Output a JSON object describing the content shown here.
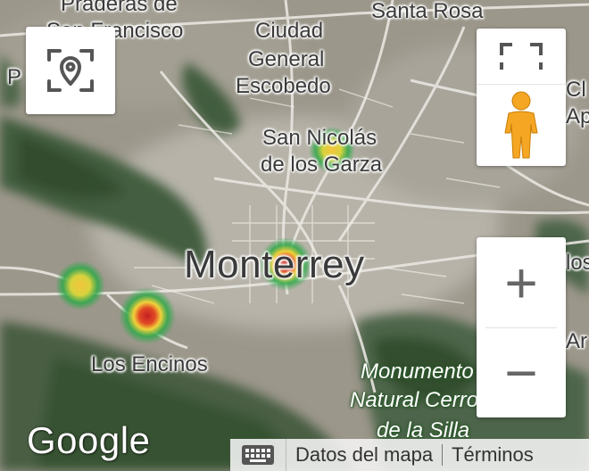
{
  "map": {
    "places": [
      {
        "name": "Praderas de",
        "type": "small"
      },
      {
        "name": "San Francisco",
        "type": "small"
      },
      {
        "name": "Santa Rosa",
        "type": "small"
      },
      {
        "name": "Ciudad",
        "type": "small"
      },
      {
        "name": "General",
        "type": "small"
      },
      {
        "name": "Escobedo",
        "type": "small"
      },
      {
        "name": "San Nicolás",
        "type": "small"
      },
      {
        "name": "de los Garza",
        "type": "small"
      },
      {
        "name": "Monterrey",
        "type": "big"
      },
      {
        "name": "Los Encinos",
        "type": "small"
      },
      {
        "name": "Monumento",
        "type": "park"
      },
      {
        "name": "Natural Cerro",
        "type": "park"
      },
      {
        "name": "de la Silla",
        "type": "park"
      },
      {
        "name": "P",
        "type": "small"
      },
      {
        "name": "Cl",
        "type": "small"
      },
      {
        "name": "Ap",
        "type": "small"
      },
      {
        "name": "los",
        "type": "small"
      },
      {
        "name": "Ar",
        "type": "small"
      }
    ],
    "heat_colors": {
      "hot": "#d3232a",
      "warm": "#f2d23a",
      "cool": "#2ea84a"
    }
  },
  "controls": {
    "locate_icon": "location-pin-in-frame-icon",
    "fullscreen_icon": "fullscreen-corners-icon",
    "pegman_icon": "pegman-street-view-icon",
    "zoom_in": "+",
    "zoom_out": "−",
    "keyboard_icon": "keyboard-icon"
  },
  "branding": {
    "logo": "Google"
  },
  "attribution": {
    "map_data": "Datos del mapa",
    "terms": "Términos"
  }
}
